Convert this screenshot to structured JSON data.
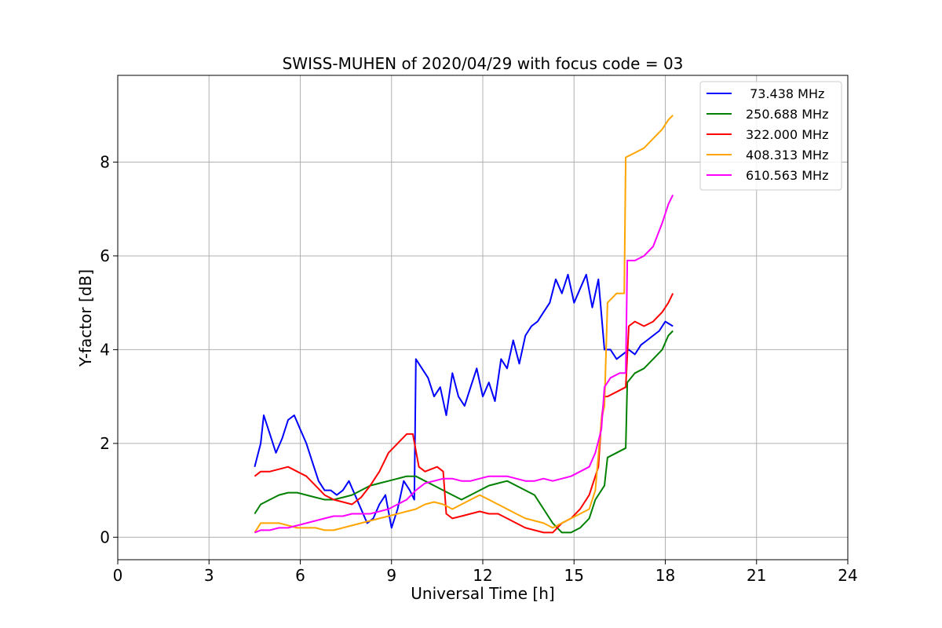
{
  "chart_data": {
    "type": "line",
    "title": "SWISS-MUHEN of 2020/04/29 with focus code = 03",
    "xlabel": "Universal Time [h]",
    "ylabel": "Y-factor [dB]",
    "xlim": [
      0,
      24
    ],
    "ylim": [
      -0.48,
      9.85
    ],
    "xticks": [
      0,
      3,
      6,
      9,
      12,
      15,
      18,
      21,
      24
    ],
    "yticks": [
      0,
      2,
      4,
      6,
      8
    ],
    "grid": true,
    "legend_position": "top-right",
    "series": [
      {
        "name": " 73.438 MHz",
        "color": "#0000ff",
        "x": [
          4.5,
          4.7,
          4.8,
          5.0,
          5.2,
          5.4,
          5.6,
          5.8,
          6.0,
          6.2,
          6.4,
          6.6,
          6.8,
          7.0,
          7.2,
          7.4,
          7.6,
          7.8,
          8.0,
          8.2,
          8.4,
          8.6,
          8.8,
          9.0,
          9.2,
          9.4,
          9.6,
          9.75,
          9.8,
          10.0,
          10.2,
          10.4,
          10.6,
          10.8,
          11.0,
          11.2,
          11.4,
          11.6,
          11.8,
          12.0,
          12.2,
          12.4,
          12.6,
          12.8,
          13.0,
          13.2,
          13.4,
          13.6,
          13.8,
          14.0,
          14.2,
          14.4,
          14.6,
          14.8,
          15.0,
          15.2,
          15.4,
          15.6,
          15.8,
          16.0,
          16.2,
          16.4,
          16.6,
          16.8,
          17.0,
          17.2,
          17.4,
          17.6,
          17.8,
          18.0,
          18.25
        ],
        "y": [
          1.5,
          2.0,
          2.6,
          2.2,
          1.8,
          2.1,
          2.5,
          2.6,
          2.3,
          2.0,
          1.6,
          1.2,
          1.0,
          1.0,
          0.9,
          1.0,
          1.2,
          0.9,
          0.6,
          0.3,
          0.4,
          0.7,
          0.9,
          0.2,
          0.6,
          1.2,
          1.0,
          0.8,
          3.8,
          3.6,
          3.4,
          3.0,
          3.2,
          2.6,
          3.5,
          3.0,
          2.8,
          3.2,
          3.6,
          3.0,
          3.3,
          2.9,
          3.8,
          3.6,
          4.2,
          3.7,
          4.3,
          4.5,
          4.6,
          4.8,
          5.0,
          5.5,
          5.2,
          5.6,
          5.0,
          5.3,
          5.6,
          4.9,
          5.5,
          4.0,
          4.0,
          3.8,
          3.9,
          4.0,
          3.9,
          4.1,
          4.2,
          4.3,
          4.4,
          4.6,
          4.5
        ]
      },
      {
        "name": "250.688 MHz",
        "color": "#008000",
        "x": [
          4.5,
          4.7,
          5.0,
          5.3,
          5.6,
          5.9,
          6.2,
          6.5,
          6.8,
          7.1,
          7.4,
          7.7,
          8.0,
          8.3,
          8.6,
          8.9,
          9.2,
          9.5,
          9.8,
          10.1,
          10.4,
          10.7,
          11.0,
          11.3,
          11.6,
          11.9,
          12.2,
          12.5,
          12.8,
          13.1,
          13.4,
          13.7,
          14.0,
          14.3,
          14.6,
          14.9,
          15.2,
          15.5,
          15.7,
          15.9,
          16.0,
          16.1,
          16.4,
          16.7,
          16.75,
          17.0,
          17.3,
          17.6,
          17.9,
          18.1,
          18.25
        ],
        "y": [
          0.5,
          0.7,
          0.8,
          0.9,
          0.95,
          0.95,
          0.9,
          0.85,
          0.8,
          0.8,
          0.85,
          0.9,
          1.0,
          1.1,
          1.15,
          1.2,
          1.25,
          1.3,
          1.3,
          1.2,
          1.1,
          1.0,
          0.9,
          0.8,
          0.9,
          1.0,
          1.1,
          1.15,
          1.2,
          1.1,
          1.0,
          0.9,
          0.6,
          0.3,
          0.1,
          0.1,
          0.2,
          0.4,
          0.8,
          1.0,
          1.1,
          1.7,
          1.8,
          1.9,
          3.3,
          3.5,
          3.6,
          3.8,
          4.0,
          4.3,
          4.4
        ]
      },
      {
        "name": "322.000 MHz",
        "color": "#ff0000",
        "x": [
          4.5,
          4.7,
          5.0,
          5.3,
          5.6,
          5.9,
          6.2,
          6.5,
          6.8,
          7.1,
          7.4,
          7.7,
          8.0,
          8.3,
          8.6,
          8.9,
          9.2,
          9.5,
          9.7,
          9.9,
          10.1,
          10.3,
          10.5,
          10.7,
          10.8,
          11.0,
          11.3,
          11.6,
          11.9,
          12.2,
          12.5,
          12.8,
          13.1,
          13.4,
          13.7,
          14.0,
          14.3,
          14.6,
          14.9,
          15.2,
          15.5,
          15.8,
          15.9,
          16.0,
          16.1,
          16.4,
          16.7,
          16.8,
          17.0,
          17.3,
          17.6,
          17.9,
          18.1,
          18.25
        ],
        "y": [
          1.3,
          1.4,
          1.4,
          1.45,
          1.5,
          1.4,
          1.3,
          1.1,
          0.9,
          0.8,
          0.75,
          0.7,
          0.85,
          1.1,
          1.4,
          1.8,
          2.0,
          2.2,
          2.2,
          1.5,
          1.4,
          1.45,
          1.5,
          1.4,
          0.5,
          0.4,
          0.45,
          0.5,
          0.55,
          0.5,
          0.5,
          0.4,
          0.3,
          0.2,
          0.15,
          0.1,
          0.1,
          0.3,
          0.4,
          0.6,
          0.9,
          1.5,
          2.5,
          3.0,
          3.0,
          3.1,
          3.2,
          4.5,
          4.6,
          4.5,
          4.6,
          4.8,
          5.0,
          5.2
        ]
      },
      {
        "name": "408.313 MHz",
        "color": "#ffa500",
        "x": [
          4.5,
          4.7,
          5.0,
          5.3,
          5.6,
          5.9,
          6.2,
          6.5,
          6.8,
          7.1,
          7.4,
          7.7,
          8.0,
          8.3,
          8.6,
          8.9,
          9.2,
          9.5,
          9.8,
          10.1,
          10.4,
          10.7,
          11.0,
          11.3,
          11.6,
          11.9,
          12.2,
          12.5,
          12.8,
          13.1,
          13.4,
          13.7,
          14.0,
          14.3,
          14.6,
          14.9,
          15.2,
          15.5,
          15.7,
          15.9,
          16.0,
          16.1,
          16.4,
          16.65,
          16.7,
          17.0,
          17.3,
          17.6,
          17.9,
          18.1,
          18.25
        ],
        "y": [
          0.1,
          0.3,
          0.3,
          0.3,
          0.25,
          0.2,
          0.2,
          0.2,
          0.15,
          0.15,
          0.2,
          0.25,
          0.3,
          0.35,
          0.4,
          0.45,
          0.5,
          0.55,
          0.6,
          0.7,
          0.75,
          0.7,
          0.6,
          0.7,
          0.8,
          0.9,
          0.8,
          0.7,
          0.6,
          0.5,
          0.4,
          0.35,
          0.3,
          0.2,
          0.3,
          0.4,
          0.5,
          0.6,
          1.0,
          2.5,
          2.8,
          5.0,
          5.2,
          5.2,
          8.1,
          8.2,
          8.3,
          8.5,
          8.7,
          8.9,
          9.0
        ]
      },
      {
        "name": "610.563 MHz",
        "color": "#ff00ff",
        "x": [
          4.5,
          4.7,
          5.0,
          5.3,
          5.6,
          5.9,
          6.2,
          6.5,
          6.8,
          7.1,
          7.4,
          7.7,
          8.0,
          8.3,
          8.6,
          8.9,
          9.2,
          9.5,
          9.8,
          10.1,
          10.4,
          10.7,
          11.0,
          11.3,
          11.6,
          11.9,
          12.2,
          12.5,
          12.8,
          13.1,
          13.4,
          13.7,
          14.0,
          14.3,
          14.6,
          14.9,
          15.2,
          15.5,
          15.7,
          15.9,
          16.0,
          16.2,
          16.5,
          16.7,
          16.75,
          17.0,
          17.3,
          17.6,
          17.9,
          18.1,
          18.25
        ],
        "y": [
          0.1,
          0.15,
          0.15,
          0.2,
          0.2,
          0.25,
          0.3,
          0.35,
          0.4,
          0.45,
          0.45,
          0.5,
          0.5,
          0.5,
          0.55,
          0.6,
          0.7,
          0.8,
          1.0,
          1.15,
          1.2,
          1.25,
          1.25,
          1.2,
          1.2,
          1.25,
          1.3,
          1.3,
          1.3,
          1.25,
          1.2,
          1.2,
          1.25,
          1.2,
          1.25,
          1.3,
          1.4,
          1.5,
          1.8,
          2.3,
          3.2,
          3.4,
          3.5,
          3.5,
          5.9,
          5.9,
          6.0,
          6.2,
          6.7,
          7.1,
          7.3
        ]
      }
    ]
  }
}
